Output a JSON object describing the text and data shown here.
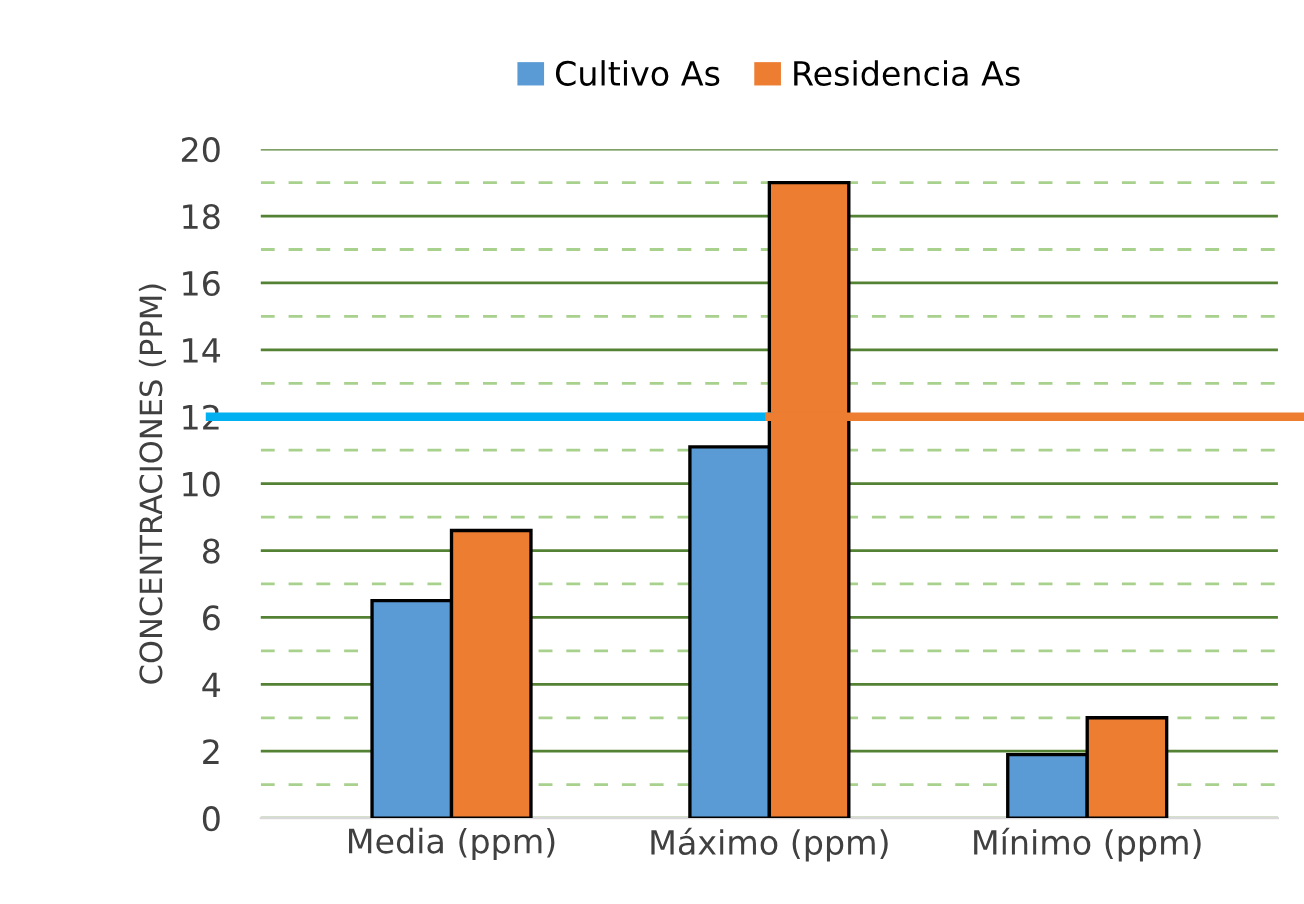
{
  "chart_data": {
    "type": "bar",
    "ylabel": "CONCENTRACIONES (PPM)",
    "categories": [
      "Media (ppm)",
      "Máximo (ppm)",
      "Mínimo (ppm)"
    ],
    "series": [
      {
        "name": "Cultivo As",
        "color": "#5b9bd5",
        "values": [
          6.5,
          11.1,
          1.9
        ]
      },
      {
        "name": "Residencia As",
        "color": "#ed7d31",
        "values": [
          8.6,
          19.0,
          3.0
        ]
      }
    ],
    "ylim": [
      0,
      20
    ],
    "yticks": [
      0,
      {
        "value": 1,
        "label": null
      },
      2,
      {
        "value": 3,
        "label": null
      },
      4,
      {
        "value": 5,
        "label": null
      },
      6,
      {
        "value": 7,
        "label": null
      },
      8,
      {
        "value": 9,
        "label": null
      },
      10,
      {
        "value": 11,
        "label": null
      },
      12,
      {
        "value": 13,
        "label": null
      },
      14,
      {
        "value": 15,
        "label": null
      },
      16,
      {
        "value": 17,
        "label": null
      },
      18,
      {
        "value": 19,
        "label": null
      },
      20
    ],
    "grid": "y",
    "legend": "top",
    "ref_lines": [
      {
        "axis": "y",
        "value": 12,
        "color": "#00b0f0"
      },
      {
        "axis": "y",
        "value": 12,
        "color": "#ed7d31"
      }
    ]
  }
}
